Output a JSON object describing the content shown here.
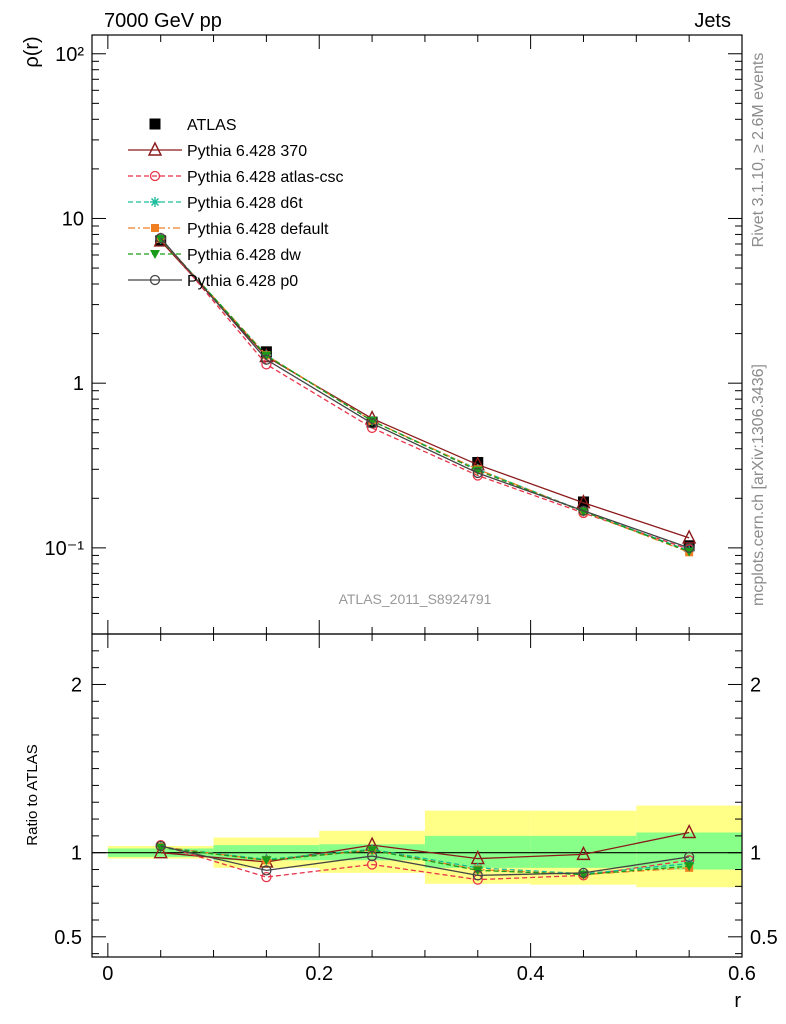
{
  "header": {
    "left": "7000 GeV pp",
    "right": "Jets"
  },
  "side_text": {
    "rivet": "Rivet 3.1.10, ≥ 2.6M events",
    "mcplots": "mcplots.cern.ch [arXiv:1306.3436]"
  },
  "watermark": "ATLAS_2011_S8924791",
  "chart_data": [
    {
      "type": "line",
      "panel": "main",
      "ylabel": "ρ(r)",
      "xlabel": "",
      "yscale": "log",
      "ylim": [
        0.03,
        130
      ],
      "xlim": [
        -0.015,
        0.6
      ],
      "y_tick_labels": [
        "10⁻¹",
        "1",
        "10",
        "10²"
      ],
      "x": [
        0.05,
        0.15,
        0.25,
        0.35,
        0.45,
        0.55
      ],
      "data": {
        "name": "ATLAS",
        "values": [
          7.3,
          1.55,
          0.58,
          0.33,
          0.19,
          0.103
        ]
      },
      "series": [
        {
          "name": "Pythia 6.428 370",
          "color": "#8b1a1a",
          "marker": "open-triangle",
          "dash": "solid",
          "values": [
            7.3,
            1.45,
            0.61,
            0.32,
            0.188,
            0.115
          ]
        },
        {
          "name": "Pythia 6.428 atlas-csc",
          "color": "#e8334a",
          "marker": "open-circle",
          "dash": "dashed",
          "values": [
            7.6,
            1.3,
            0.535,
            0.275,
            0.163,
            0.098
          ]
        },
        {
          "name": "Pythia 6.428 d6t",
          "color": "#1abc9c",
          "marker": "asterisk",
          "dash": "dashed",
          "values": [
            7.5,
            1.48,
            0.59,
            0.3,
            0.167,
            0.096
          ]
        },
        {
          "name": "Pythia 6.428 default",
          "color": "#f07f24",
          "marker": "filled-square",
          "dash": "dashdot",
          "values": [
            7.5,
            1.48,
            0.59,
            0.3,
            0.166,
            0.094
          ]
        },
        {
          "name": "Pythia 6.428 dw",
          "color": "#1a9c1a",
          "marker": "filled-triangle-down",
          "dash": "dashed",
          "values": [
            7.5,
            1.47,
            0.59,
            0.295,
            0.166,
            0.095
          ]
        },
        {
          "name": "Pythia 6.428 p0",
          "color": "#444444",
          "marker": "open-circle",
          "dash": "solid",
          "values": [
            7.6,
            1.39,
            0.57,
            0.285,
            0.168,
            0.1
          ]
        }
      ],
      "legend": "upper-left"
    },
    {
      "type": "line",
      "panel": "ratio",
      "ylabel": "Ratio to ATLAS",
      "xlabel": "r",
      "ylim": [
        0.38,
        2.3
      ],
      "xlim": [
        -0.015,
        0.6
      ],
      "y_tick_labels": [
        "0.5",
        "1",
        "2"
      ],
      "x_tick_labels": [
        "0",
        "0.2",
        "0.4",
        "0.6"
      ],
      "x": [
        0.05,
        0.15,
        0.25,
        0.35,
        0.45,
        0.55
      ],
      "bands": {
        "bin_edges": [
          0.0,
          0.1,
          0.2,
          0.3,
          0.4,
          0.5,
          0.6
        ],
        "stat_low": [
          0.975,
          0.955,
          0.955,
          0.91,
          0.91,
          0.9
        ],
        "stat_high": [
          1.025,
          1.045,
          1.05,
          1.1,
          1.1,
          1.12
        ],
        "total_low": [
          0.965,
          0.91,
          0.88,
          0.815,
          0.81,
          0.795
        ],
        "total_high": [
          1.04,
          1.09,
          1.13,
          1.25,
          1.25,
          1.28
        ]
      },
      "series": [
        {
          "name": "Pythia 6.428 370",
          "values": [
            1.0,
            0.945,
            1.045,
            0.965,
            0.99,
            1.12
          ]
        },
        {
          "name": "Pythia 6.428 atlas-csc",
          "values": [
            1.045,
            0.855,
            0.93,
            0.84,
            0.865,
            0.955
          ]
        },
        {
          "name": "Pythia 6.428 d6t",
          "values": [
            1.035,
            0.96,
            1.02,
            0.91,
            0.875,
            0.935
          ]
        },
        {
          "name": "Pythia 6.428 default",
          "values": [
            1.035,
            0.955,
            1.015,
            0.9,
            0.87,
            0.91
          ]
        },
        {
          "name": "Pythia 6.428 dw",
          "values": [
            1.03,
            0.955,
            1.015,
            0.895,
            0.87,
            0.92
          ]
        },
        {
          "name": "Pythia 6.428 p0",
          "values": [
            1.04,
            0.895,
            0.98,
            0.865,
            0.88,
            0.975
          ]
        }
      ]
    }
  ]
}
